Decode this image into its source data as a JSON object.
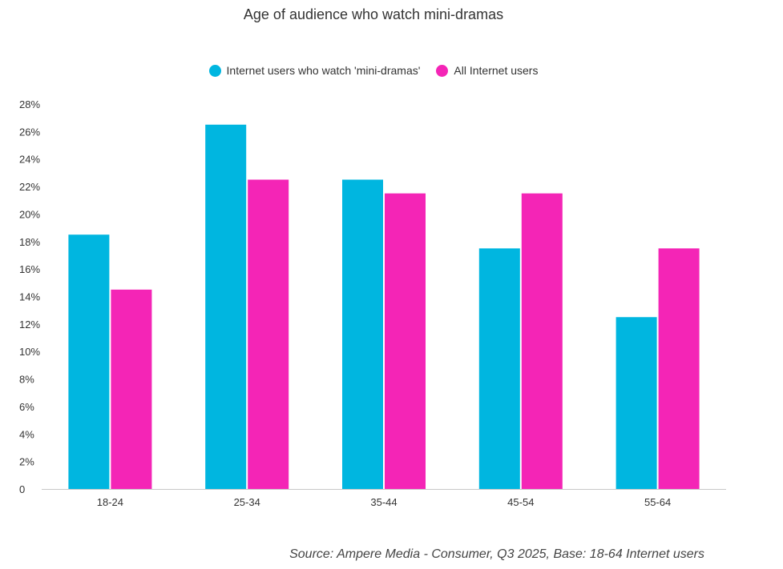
{
  "colors": {
    "series1": "#00B6E0",
    "series2": "#F425B6",
    "axis": "#c8c8c8"
  },
  "chart_data": {
    "type": "bar",
    "title": "Age of audience who watch mini-dramas",
    "categories": [
      "18-24",
      "25-34",
      "35-44",
      "45-54",
      "55-64"
    ],
    "series": [
      {
        "name": "Internet users who watch 'mini-dramas'",
        "values": [
          18.5,
          26.5,
          22.5,
          17.5,
          12.5
        ]
      },
      {
        "name": "All Internet users",
        "values": [
          14.5,
          22.5,
          21.5,
          21.5,
          17.5
        ]
      }
    ],
    "ylim": [
      0,
      28
    ],
    "yticks": [
      "0",
      "2%",
      "4%",
      "6%",
      "8%",
      "10%",
      "12%",
      "14%",
      "16%",
      "18%",
      "20%",
      "22%",
      "24%",
      "26%",
      "28%"
    ],
    "xlabel": "",
    "ylabel": "",
    "grid": false,
    "legend_position": "top-center"
  },
  "source": "Source: Ampere Media - Consumer, Q3 2025, Base: 18-64 Internet users"
}
